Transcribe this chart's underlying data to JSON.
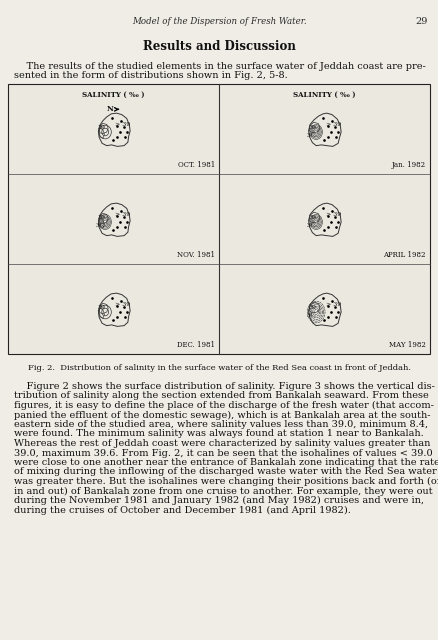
{
  "page_bg": "#f0ede6",
  "header_text": "Model of the Dispersion of Fresh Water.",
  "page_number": "29",
  "section_title": "Results and Discussion",
  "intro_text": "    The results of the studied elements in the surface water of Jeddah coast are pre-\nsented in the form of distributions shown in Fig. 2, 5-8.",
  "fig_caption": "Fig. 2.  Distribution of salinity in the surface water of the Red Sea coast in front of Jeddah.",
  "body_text": "    Figure 2 shows the surface distribution of salinity. Figure 3 shows the vertical dis-\ntribution of salinity along the section extended from Bankalah seaward. From these\nfigures, it is easy to define the place of the discharge of the fresh water (that accom-\npanied the effluent of the domestic sewage), which is at Bankalah area at the south-\neastern side of the studied area, where salinity values less than 39.0, minimum 8.4,\nwere found. The minimum salinity was always found at station 1 near to Bankalah.\nWhereas the rest of Jeddah coast were characterized by salinity values greater than\n39.0, maximum 39.6. From Fig. 2, it can be seen that the isohalines of values < 39.0\nwere close to one another near the entrance of Bankalah zone indicating that the rate\nof mixing during the inflowing of the discharged waste water with the Red Sea water\nwas greater there. But the isohalines were changing their positions back and forth (or\nin and out) of Bankalah zone from one cruise to another. For example, they were out\nduring the November 1981 and January 1982 (and May 1982) cruises and were in,\nduring the cruises of October and December 1981 (and April 1982).",
  "subplot_labels": [
    "OCT. 1981",
    "Jan. 1982",
    "NOV. 1981",
    "APRIL 1982",
    "DEC. 1981",
    "MAY 1982"
  ],
  "salinity_label": "SALINITY ( ‰ )"
}
